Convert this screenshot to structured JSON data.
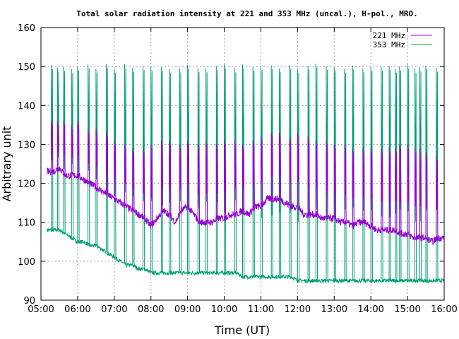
{
  "chart_data": {
    "type": "line",
    "title": "Total solar radiation intensity at 221 and 353 MHz (uncal.), H-pol., MRO.",
    "xlabel": "Time (UT)",
    "ylabel": "Arbitrary unit",
    "xlim": [
      "05:00",
      "16:00"
    ],
    "ylim": [
      90,
      160
    ],
    "xticks": [
      "05:00",
      "06:00",
      "07:00",
      "08:00",
      "09:00",
      "10:00",
      "11:00",
      "12:00",
      "13:00",
      "14:00",
      "15:00",
      "16:00"
    ],
    "yticks": [
      90,
      100,
      110,
      120,
      130,
      140,
      150,
      160
    ],
    "grid": true,
    "legend": "top-right",
    "calibration_spikes": {
      "times": [
        "05:17",
        "05:27",
        "05:37",
        "05:50",
        "06:00",
        "06:17",
        "06:30",
        "06:47",
        "07:00",
        "07:17",
        "07:30",
        "07:47",
        "08:00",
        "08:17",
        "08:30",
        "08:47",
        "09:00",
        "09:17",
        "09:30",
        "09:47",
        "10:00",
        "10:17",
        "10:30",
        "10:47",
        "11:00",
        "11:17",
        "11:30",
        "11:47",
        "12:00",
        "12:17",
        "12:30",
        "12:47",
        "13:00",
        "13:17",
        "13:30",
        "13:47",
        "14:00",
        "14:17",
        "14:30",
        "14:40",
        "14:47",
        "15:00",
        "15:12",
        "15:20",
        "15:30",
        "15:47"
      ],
      "peak_221": [
        136,
        136,
        136,
        135,
        136,
        134,
        134,
        133,
        131,
        130,
        129,
        129,
        130,
        131,
        131,
        130,
        131,
        130,
        131,
        130,
        131,
        131,
        130,
        131,
        132,
        133,
        133,
        132,
        133,
        132,
        131,
        131,
        130,
        130,
        129,
        129,
        129,
        129,
        129,
        129,
        130,
        130,
        129,
        129,
        128,
        127
      ],
      "peak_353": [
        150,
        150,
        150,
        150,
        150,
        150,
        150,
        150,
        150,
        150,
        150,
        150,
        150,
        150,
        150,
        150,
        150,
        150,
        150,
        150,
        150,
        150,
        150,
        150,
        150,
        150,
        150,
        150,
        150,
        150,
        150,
        150,
        150,
        150,
        150,
        150,
        150,
        150,
        150,
        150,
        150,
        150,
        150,
        150,
        150,
        150
      ]
    },
    "series": [
      {
        "name": "221 MHz",
        "color": "#9400d3",
        "x": [
          "05:10",
          "05:20",
          "05:30",
          "05:40",
          "05:50",
          "06:00",
          "06:10",
          "06:20",
          "06:30",
          "06:40",
          "06:50",
          "07:00",
          "07:10",
          "07:20",
          "07:30",
          "07:40",
          "07:50",
          "08:00",
          "08:10",
          "08:20",
          "08:30",
          "08:40",
          "08:50",
          "09:00",
          "09:10",
          "09:20",
          "09:30",
          "09:40",
          "09:50",
          "10:00",
          "10:10",
          "10:20",
          "10:30",
          "10:40",
          "10:50",
          "11:00",
          "11:10",
          "11:20",
          "11:30",
          "11:40",
          "11:50",
          "12:00",
          "12:10",
          "12:20",
          "12:30",
          "12:40",
          "12:50",
          "13:00",
          "13:10",
          "13:20",
          "13:30",
          "13:40",
          "13:50",
          "14:00",
          "14:10",
          "14:20",
          "14:30",
          "14:40",
          "14:50",
          "15:00",
          "15:10",
          "15:20",
          "15:30",
          "15:40",
          "15:50",
          "16:00"
        ],
        "values": [
          123,
          123,
          124,
          122,
          122,
          122,
          121,
          120,
          119,
          118,
          117,
          116,
          115,
          114,
          113,
          112,
          111,
          109,
          111,
          113,
          112,
          110,
          113,
          114,
          112,
          110,
          110,
          110,
          111,
          111,
          112,
          112,
          113,
          112,
          114,
          114,
          116,
          116,
          116,
          115,
          114,
          114,
          112,
          112,
          112,
          111,
          111,
          111,
          110,
          110,
          109,
          110,
          110,
          109,
          108,
          108,
          108,
          108,
          107,
          107,
          106,
          106,
          106,
          105,
          106,
          106
        ]
      },
      {
        "name": "353 MHz",
        "color": "#009e73",
        "x": [
          "05:10",
          "05:20",
          "05:30",
          "05:40",
          "05:50",
          "06:00",
          "06:10",
          "06:20",
          "06:30",
          "06:40",
          "06:50",
          "07:00",
          "07:10",
          "07:20",
          "07:30",
          "07:40",
          "07:50",
          "08:00",
          "08:10",
          "08:20",
          "08:30",
          "08:40",
          "08:50",
          "09:00",
          "09:10",
          "09:20",
          "09:30",
          "09:40",
          "09:50",
          "10:00",
          "10:10",
          "10:20",
          "10:30",
          "10:40",
          "10:50",
          "11:00",
          "11:10",
          "11:20",
          "11:30",
          "11:40",
          "11:50",
          "12:00",
          "12:10",
          "12:20",
          "12:30",
          "12:40",
          "12:50",
          "13:00",
          "13:10",
          "13:20",
          "13:30",
          "13:40",
          "13:50",
          "14:00",
          "14:10",
          "14:20",
          "14:30",
          "14:40",
          "14:50",
          "15:00",
          "15:10",
          "15:20",
          "15:30",
          "15:40",
          "15:50",
          "16:00"
        ],
        "values": [
          108,
          108,
          108,
          107,
          106,
          105,
          105,
          104,
          104,
          103,
          102,
          101,
          100,
          99,
          99,
          98,
          98,
          97,
          97,
          97,
          97,
          97,
          97,
          97,
          97,
          97,
          97,
          97,
          97,
          97,
          97,
          97,
          96,
          96,
          96,
          96,
          96,
          96,
          96,
          96,
          96,
          95,
          95,
          95,
          95,
          95,
          95,
          95,
          95,
          95,
          95,
          95,
          95,
          95,
          95,
          95,
          95,
          95,
          95,
          95,
          95,
          95,
          95,
          95,
          95,
          95
        ]
      }
    ]
  }
}
